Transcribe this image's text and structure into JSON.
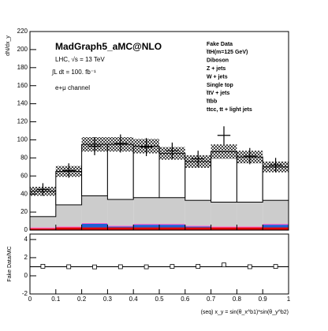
{
  "chart_data": [
    {
      "type": "stacked-histogram",
      "title": "MadGraph5_aMC@NLO",
      "annotations": [
        "LHC, √s = 13 TeV",
        "∫L dt = 100. fb⁻¹",
        "e+μ channel"
      ],
      "ylabel": "dN/dx_y",
      "bins": [
        0,
        0.1,
        0.2,
        0.3,
        0.4,
        0.5,
        0.6,
        0.7,
        0.8,
        0.9,
        1
      ],
      "xlim": [
        0,
        1
      ],
      "ylim": [
        0,
        220
      ],
      "yticks": [
        0,
        20,
        40,
        60,
        80,
        100,
        120,
        140,
        160,
        180,
        200,
        220
      ],
      "data": {
        "name": "Fake Data",
        "color": "#000000",
        "values": [
          45,
          66,
          93,
          96,
          92,
          88,
          79,
          105,
          82,
          72
        ],
        "errors": [
          7,
          8,
          10,
          10,
          10,
          9,
          9,
          10,
          9,
          8
        ]
      },
      "series": [
        {
          "name": "t̅tH(m=125 GeV)",
          "color": "#e00000",
          "values": [
            2,
            3,
            3,
            3,
            3,
            3,
            3,
            3,
            3,
            3
          ]
        },
        {
          "name": "Diboson",
          "color": "#ff9900",
          "values": [
            0,
            0,
            0,
            0,
            0,
            0,
            0,
            0,
            0,
            0
          ]
        },
        {
          "name": "Z + jets",
          "color": "#22bb22",
          "values": [
            0,
            0,
            0,
            0,
            0,
            0,
            0,
            0,
            0,
            0
          ]
        },
        {
          "name": "W + jets",
          "color": "#66cc00",
          "values": [
            0,
            0,
            0,
            0,
            0,
            0,
            0,
            0,
            0,
            0
          ]
        },
        {
          "name": "Single top",
          "color": "#1f5fd6",
          "values": [
            0,
            0,
            4,
            1,
            3,
            3,
            1,
            0,
            0,
            3
          ]
        },
        {
          "name": "t̅tV + jets",
          "color": "#ff66cc",
          "values": [
            1,
            1,
            1,
            1,
            1,
            1,
            1,
            1,
            1,
            1
          ]
        },
        {
          "name": "t̅tbb",
          "color": "#cccccc",
          "values": [
            12,
            24,
            30,
            29,
            29,
            29,
            28,
            27,
            27,
            26
          ]
        },
        {
          "name": "ttcc, tt + light jets",
          "color": "#000000",
          "fill": "#ffffff",
          "values": [
            28,
            37,
            57,
            61,
            57,
            49,
            43,
            56,
            50,
            37
          ]
        }
      ],
      "mc_errors": [
        5,
        6,
        8,
        8,
        8,
        7,
        7,
        8,
        7,
        6
      ]
    },
    {
      "type": "ratio",
      "ylabel": "Fake Data/MC",
      "xlabel": "(seq) x_y = sin(θ_x^b1)*sin(θ_y^b2)",
      "xlim": [
        0,
        1
      ],
      "xticks": [
        0,
        0.1,
        0.2,
        0.3,
        0.4,
        0.5,
        0.6,
        0.7,
        0.8,
        0.9,
        1
      ],
      "ylim": [
        -2,
        4.6
      ],
      "yticks": [
        -2,
        0,
        2,
        4
      ],
      "reference_line": 1,
      "values": [
        1.05,
        1.0,
        0.98,
        1.0,
        0.99,
        1.03,
        1.04,
        1.2,
        1.0,
        1.03
      ],
      "errors": [
        0.15,
        0.12,
        0.1,
        0.1,
        0.1,
        0.1,
        0.11,
        0.1,
        0.11,
        0.11
      ]
    }
  ]
}
